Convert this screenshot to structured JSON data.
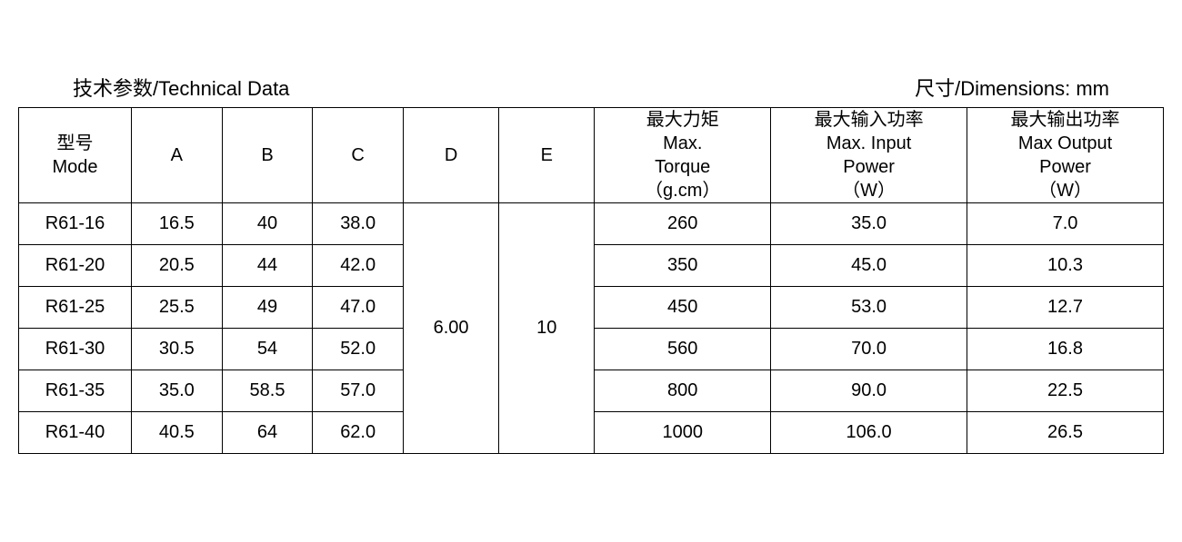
{
  "titles": {
    "left": "技术参数/Technical Data",
    "right": "尺寸/Dimensions: mm"
  },
  "table": {
    "headers": {
      "mode": "型号<br>Mode",
      "a": "A",
      "b": "B",
      "c": "C",
      "d": "D",
      "e": "E",
      "torque": "最大力矩<br>Max.<br>Torque<br>（g.cm）",
      "input_power": "最大输入功率<br>Max. Input<br>Power<br>（W）",
      "output_power": "最大输出功率<br>Max Output<br>Power<br>（W）"
    },
    "merged": {
      "d": "6.00",
      "e": "10"
    },
    "rows": [
      {
        "mode": "R61-16",
        "a": "16.5",
        "b": "40",
        "c": "38.0",
        "torque": "260",
        "input": "35.0",
        "output": "7.0"
      },
      {
        "mode": "R61-20",
        "a": "20.5",
        "b": "44",
        "c": "42.0",
        "torque": "350",
        "input": "45.0",
        "output": "10.3"
      },
      {
        "mode": "R61-25",
        "a": "25.5",
        "b": "49",
        "c": "47.0",
        "torque": "450",
        "input": "53.0",
        "output": "12.7"
      },
      {
        "mode": "R61-30",
        "a": "30.5",
        "b": "54",
        "c": "52.0",
        "torque": "560",
        "input": "70.0",
        "output": "16.8"
      },
      {
        "mode": "R61-35",
        "a": "35.0",
        "b": "58.5",
        "c": "57.0",
        "torque": "800",
        "input": "90.0",
        "output": "22.5"
      },
      {
        "mode": "R61-40",
        "a": "40.5",
        "b": "64",
        "c": "62.0",
        "torque": "1000",
        "input": "106.0",
        "output": "26.5"
      }
    ],
    "column_widths": {
      "mode": 112,
      "a": 90,
      "b": 90,
      "c": 90,
      "d": 95,
      "e": 95,
      "torque": 175,
      "input": 195,
      "output": 195
    },
    "styling": {
      "border_color": "#000000",
      "text_color": "#000000",
      "background_color": "#ffffff",
      "font_size": 20,
      "title_font_size": 22,
      "header_row_height": 100,
      "data_row_height": 46,
      "border_width": 1.5
    }
  }
}
